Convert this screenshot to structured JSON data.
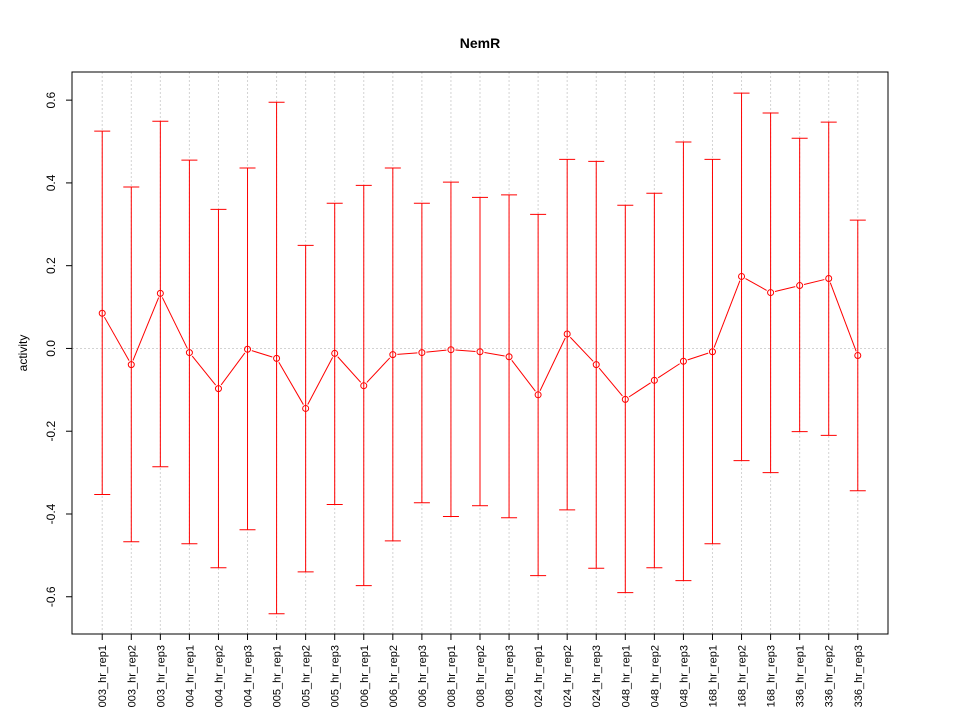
{
  "chart_data": {
    "type": "line",
    "title": "NemR",
    "xlabel": "",
    "ylabel": "activity",
    "ylim": [
      -0.69,
      0.668
    ],
    "yticks": [
      -0.6,
      -0.4,
      -0.2,
      0.0,
      0.2,
      0.4,
      0.6
    ],
    "ytick_labels": [
      "-0.6",
      "-0.4",
      "-0.2",
      "0.0",
      "0.2",
      "0.4",
      "0.6"
    ],
    "grid": true,
    "series_color": "#ff0000",
    "categories": [
      "003_hr_rep1",
      "003_hr_rep2",
      "003_hr_rep3",
      "004_hr_rep1",
      "004_hr_rep2",
      "004_hr_rep3",
      "005_hr_rep1",
      "005_hr_rep2",
      "005_hr_rep3",
      "006_hr_rep1",
      "006_hr_rep2",
      "006_hr_rep3",
      "008_hr_rep1",
      "008_hr_rep2",
      "008_hr_rep3",
      "024_hr_rep1",
      "024_hr_rep2",
      "024_hr_rep3",
      "048_hr_rep1",
      "048_hr_rep2",
      "048_hr_rep3",
      "168_hr_rep1",
      "168_hr_rep2",
      "168_hr_rep3",
      "336_hr_rep1",
      "336_hr_rep2",
      "336_hr_rep3"
    ],
    "series": [
      {
        "name": "activity",
        "values": [
          0.085,
          -0.039,
          0.133,
          -0.01,
          -0.097,
          -0.002,
          -0.024,
          -0.145,
          -0.012,
          -0.09,
          -0.015,
          -0.01,
          -0.003,
          -0.008,
          -0.02,
          -0.112,
          0.035,
          -0.039,
          -0.123,
          -0.077,
          -0.031,
          -0.008,
          0.174,
          0.135,
          0.152,
          0.169,
          -0.017
        ],
        "upper": [
          0.525,
          0.39,
          0.549,
          0.455,
          0.336,
          0.436,
          0.595,
          0.249,
          0.351,
          0.394,
          0.436,
          0.351,
          0.402,
          0.365,
          0.371,
          0.324,
          0.457,
          0.452,
          0.346,
          0.375,
          0.499,
          0.457,
          0.617,
          0.569,
          0.508,
          0.547,
          0.31
        ],
        "lower": [
          -0.353,
          -0.467,
          -0.286,
          -0.472,
          -0.53,
          -0.438,
          -0.641,
          -0.54,
          -0.377,
          -0.573,
          -0.465,
          -0.373,
          -0.406,
          -0.38,
          -0.409,
          -0.549,
          -0.39,
          -0.531,
          -0.59,
          -0.53,
          -0.561,
          -0.472,
          -0.271,
          -0.3,
          -0.201,
          -0.21,
          -0.344
        ]
      }
    ]
  }
}
